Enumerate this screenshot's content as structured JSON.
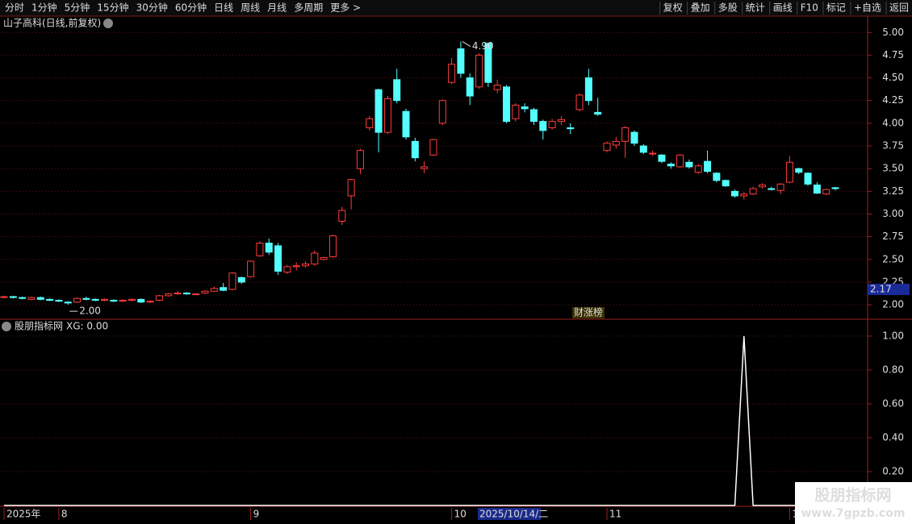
{
  "toolbar": {
    "left": [
      "分时",
      "1分钟",
      "5分钟",
      "15分钟",
      "30分钟",
      "60分钟",
      "日线",
      "周线",
      "月线",
      "多周期",
      "更多 >"
    ],
    "active": "日线",
    "right": [
      "复权",
      "叠加",
      "多股",
      "统计",
      "画线",
      "F10",
      "标记",
      "+自选",
      "返回"
    ]
  },
  "stock_title": "山子高科(日线,前复权)",
  "badge": "财涨榜",
  "cursor_date": "2025/10/14/二",
  "watermark": {
    "name": "股朋指标网",
    "url": "www.7gpzb.com"
  },
  "chart_data": [
    {
      "type": "candlestick",
      "up_color": "#ff3c3c",
      "down_color": "#54ffff",
      "categories": [
        "2025年",
        null,
        null,
        null,
        null,
        null,
        "8",
        null,
        null,
        null,
        null,
        null,
        null,
        null,
        null,
        null,
        null,
        null,
        null,
        null,
        null,
        null,
        null,
        null,
        null,
        null,
        null,
        "9",
        null,
        null,
        null,
        null,
        null,
        null,
        null,
        null,
        null,
        null,
        null,
        null,
        null,
        null,
        null,
        null,
        null,
        null,
        null,
        null,
        null,
        "10",
        null,
        null,
        null,
        null,
        null,
        null,
        null,
        null,
        null,
        null,
        null,
        null,
        null,
        null,
        null,
        null,
        "11",
        null,
        null,
        null,
        null,
        null,
        null,
        null,
        null,
        null,
        null,
        null,
        null,
        null,
        null,
        null,
        null,
        null,
        null,
        null,
        "1",
        null,
        null,
        null,
        null,
        null
      ],
      "open": [
        2.08,
        2.09,
        2.08,
        2.06,
        2.08,
        2.06,
        2.05,
        2.03,
        2.03,
        2.07,
        2.06,
        2.05,
        2.05,
        2.04,
        2.05,
        2.06,
        2.03,
        2.05,
        2.1,
        2.12,
        2.13,
        2.12,
        2.13,
        2.15,
        2.19,
        2.17,
        2.3,
        2.31,
        2.54,
        2.68,
        2.65,
        2.36,
        2.42,
        2.43,
        2.45,
        2.5,
        2.53,
        2.92,
        3.2,
        3.5,
        3.95,
        4.37,
        3.9,
        4.48,
        4.13,
        3.8,
        3.5,
        3.65,
        4.0,
        4.45,
        4.82,
        4.5,
        4.4,
        4.88,
        4.37,
        4.4,
        4.05,
        4.18,
        4.15,
        4.02,
        3.95,
        4.02,
        3.95,
        4.15,
        4.5,
        4.12,
        3.7,
        3.76,
        3.8,
        3.9,
        3.75,
        3.67,
        3.65,
        3.55,
        3.52,
        3.57,
        3.46,
        3.58,
        3.45,
        3.37,
        3.25,
        3.2,
        3.22,
        3.3,
        3.28,
        3.26,
        3.35,
        3.5,
        3.45,
        3.32,
        3.22,
        3.29
      ],
      "high": [
        2.1,
        2.1,
        2.09,
        2.09,
        2.09,
        2.07,
        2.06,
        2.04,
        2.08,
        2.09,
        2.07,
        2.07,
        2.06,
        2.06,
        2.07,
        2.07,
        2.05,
        2.11,
        2.13,
        2.15,
        2.14,
        2.13,
        2.16,
        2.2,
        2.24,
        2.36,
        2.31,
        2.49,
        2.7,
        2.73,
        2.68,
        2.44,
        2.47,
        2.48,
        2.6,
        2.53,
        2.77,
        3.08,
        3.39,
        3.72,
        4.08,
        4.38,
        4.3,
        4.6,
        4.16,
        3.84,
        3.58,
        3.83,
        4.26,
        4.72,
        4.9,
        4.55,
        4.77,
        4.89,
        4.48,
        4.42,
        4.22,
        4.22,
        4.17,
        4.04,
        4.05,
        4.08,
        4.0,
        4.33,
        4.6,
        4.28,
        3.8,
        3.85,
        3.97,
        3.92,
        3.77,
        3.7,
        3.66,
        3.57,
        3.66,
        3.6,
        3.55,
        3.7,
        3.46,
        3.38,
        3.27,
        3.24,
        3.3,
        3.34,
        3.3,
        3.34,
        3.64,
        3.51,
        3.46,
        3.35,
        3.28,
        3.3
      ],
      "low": [
        2.07,
        2.07,
        2.06,
        2.05,
        2.05,
        2.04,
        2.03,
        2.0,
        2.02,
        2.05,
        2.04,
        2.04,
        2.03,
        2.03,
        2.04,
        2.02,
        2.02,
        2.04,
        2.09,
        2.11,
        2.11,
        2.11,
        2.12,
        2.14,
        2.15,
        2.16,
        2.23,
        2.3,
        2.53,
        2.55,
        2.33,
        2.34,
        2.38,
        2.41,
        2.43,
        2.49,
        2.52,
        2.88,
        3.05,
        3.44,
        3.92,
        3.68,
        3.88,
        4.22,
        3.82,
        3.58,
        3.45,
        3.64,
        3.98,
        4.43,
        4.5,
        4.2,
        4.38,
        4.4,
        4.33,
        4.0,
        4.02,
        4.12,
        3.98,
        3.82,
        3.93,
        3.98,
        3.88,
        4.13,
        4.2,
        4.08,
        3.68,
        3.72,
        3.62,
        3.75,
        3.66,
        3.64,
        3.56,
        3.5,
        3.51,
        3.5,
        3.44,
        3.45,
        3.35,
        3.3,
        3.18,
        3.16,
        3.21,
        3.28,
        3.26,
        3.22,
        3.34,
        3.44,
        3.31,
        3.22,
        3.21,
        3.26
      ],
      "close": [
        2.09,
        2.08,
        2.07,
        2.08,
        2.06,
        2.05,
        2.04,
        2.02,
        2.07,
        2.06,
        2.05,
        2.06,
        2.04,
        2.05,
        2.06,
        2.03,
        2.04,
        2.1,
        2.12,
        2.13,
        2.12,
        2.12,
        2.15,
        2.18,
        2.16,
        2.35,
        2.25,
        2.48,
        2.68,
        2.58,
        2.37,
        2.42,
        2.43,
        2.45,
        2.57,
        2.52,
        2.76,
        3.04,
        3.38,
        3.7,
        4.05,
        3.9,
        4.27,
        4.25,
        3.85,
        3.62,
        3.52,
        3.82,
        4.25,
        4.65,
        4.55,
        4.3,
        4.75,
        4.45,
        4.42,
        4.02,
        4.2,
        4.16,
        4.02,
        3.92,
        4.02,
        4.04,
        3.94,
        4.31,
        4.25,
        4.1,
        3.78,
        3.8,
        3.95,
        3.78,
        3.68,
        3.67,
        3.58,
        3.53,
        3.65,
        3.52,
        3.53,
        3.47,
        3.37,
        3.31,
        3.2,
        3.22,
        3.28,
        3.32,
        3.27,
        3.33,
        3.57,
        3.46,
        3.33,
        3.23,
        3.27,
        3.28
      ],
      "high_label": "4.90",
      "low_label": "2.00",
      "price_tag": {
        "value": 2.17,
        "label": "2.17"
      },
      "ylim": [
        1.85,
        5.18
      ],
      "yticks": [
        {
          "value": 2,
          "label": "2.00"
        },
        {
          "value": 2.25,
          "label": "2.25"
        },
        {
          "value": 2.5,
          "label": "2.50"
        },
        {
          "value": 2.75,
          "label": "2.75"
        },
        {
          "value": 3,
          "label": "3.00"
        },
        {
          "value": 3.25,
          "label": "3.25"
        },
        {
          "value": 3.5,
          "label": "3.50"
        },
        {
          "value": 3.75,
          "label": "3.75"
        },
        {
          "value": 4,
          "label": "4.00"
        },
        {
          "value": 4.25,
          "label": "4.25"
        },
        {
          "value": 4.5,
          "label": "4.50"
        },
        {
          "value": 4.75,
          "label": "4.75"
        },
        {
          "value": 5,
          "label": "5.00"
        }
      ],
      "grid": true
    },
    {
      "type": "line",
      "title": "股朋指标网",
      "indicator_label": "XG: 0.00",
      "series": [
        {
          "name": "XG",
          "color": "#ffffff",
          "values": [
            0,
            0,
            0,
            0,
            0,
            0,
            0,
            0,
            0,
            0,
            0,
            0,
            0,
            0,
            0,
            0,
            0,
            0,
            0,
            0,
            0,
            0,
            0,
            0,
            0,
            0,
            0,
            0,
            0,
            0,
            0,
            0,
            0,
            0,
            0,
            0,
            0,
            0,
            0,
            0,
            0,
            0,
            0,
            0,
            0,
            0,
            0,
            0,
            0,
            0,
            0,
            0,
            0,
            0,
            0,
            0,
            0,
            0,
            0,
            0,
            0,
            0,
            0,
            0,
            0,
            0,
            0,
            0,
            0,
            0,
            0,
            0,
            0,
            0,
            0,
            0,
            0,
            0,
            0,
            0,
            0,
            1,
            0,
            0,
            0,
            0,
            0,
            0,
            0,
            0,
            0,
            0
          ]
        }
      ],
      "ylim": [
        0,
        1.09
      ],
      "yticks": [
        {
          "value": 0.2,
          "label": "0.20"
        },
        {
          "value": 0.4,
          "label": "0.40"
        },
        {
          "value": 0.6,
          "label": "0.60"
        },
        {
          "value": 0.8,
          "label": "0.80"
        },
        {
          "value": 1,
          "label": "1.00"
        }
      ],
      "grid": true
    }
  ]
}
